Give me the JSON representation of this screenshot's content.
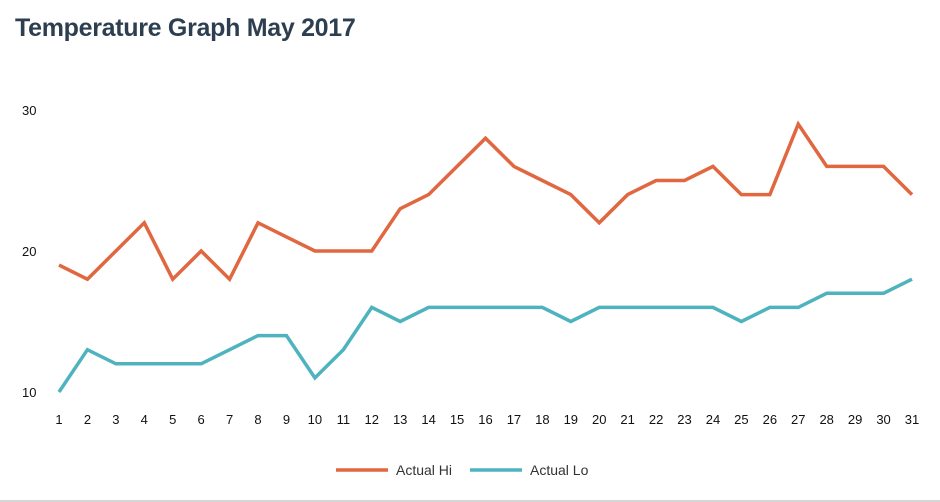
{
  "chart_data": {
    "type": "line",
    "title": "Temperature Graph May 2017",
    "xlabel": "",
    "ylabel": "",
    "x": [
      1,
      2,
      3,
      4,
      5,
      6,
      7,
      8,
      9,
      10,
      11,
      12,
      13,
      14,
      15,
      16,
      17,
      18,
      19,
      20,
      21,
      22,
      23,
      24,
      25,
      26,
      27,
      28,
      29,
      30,
      31
    ],
    "ylim": [
      10,
      30
    ],
    "yticks": [
      10,
      20,
      30
    ],
    "grid": false,
    "legend_position": "bottom-center",
    "series": [
      {
        "name": "Actual Hi",
        "color": "#e0673f",
        "values": [
          19,
          18,
          20,
          22,
          18,
          20,
          18,
          22,
          21,
          20,
          20,
          20,
          23,
          24,
          26,
          28,
          26,
          25,
          24,
          22,
          24,
          25,
          25,
          26,
          24,
          24,
          29,
          26,
          26,
          26,
          24
        ]
      },
      {
        "name": "Actual Lo",
        "color": "#4fb3bf",
        "values": [
          10,
          13,
          12,
          12,
          12,
          12,
          13,
          14,
          14,
          11,
          13,
          16,
          15,
          16,
          16,
          16,
          16,
          16,
          15,
          16,
          16,
          16,
          16,
          16,
          15,
          16,
          16,
          17,
          17,
          17,
          18
        ]
      }
    ]
  }
}
